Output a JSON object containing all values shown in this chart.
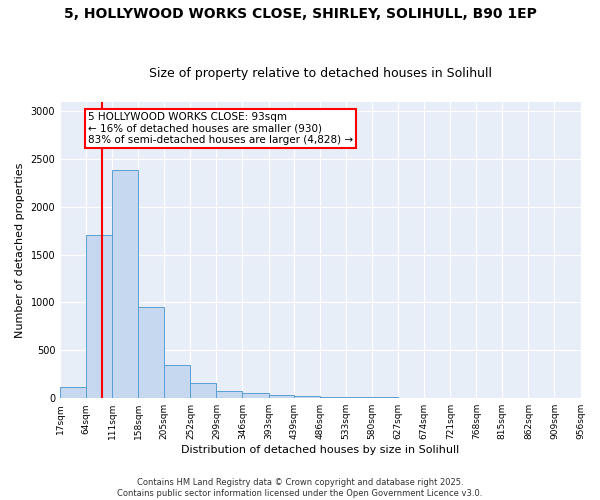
{
  "title_line1": "5, HOLLYWOOD WORKS CLOSE, SHIRLEY, SOLIHULL, B90 1EP",
  "title_line2": "Size of property relative to detached houses in Solihull",
  "xlabel": "Distribution of detached houses by size in Solihull",
  "ylabel": "Number of detached properties",
  "bar_color": "#c5d8f0",
  "bar_edge_color": "#5a9fd4",
  "background_color": "#e8eef8",
  "bin_edges": [
    17,
    64,
    111,
    158,
    205,
    252,
    299,
    346,
    393,
    439,
    486,
    533,
    580,
    627,
    674,
    721,
    768,
    815,
    862,
    909,
    956
  ],
  "bar_heights": [
    120,
    1700,
    2380,
    950,
    350,
    155,
    80,
    50,
    30,
    20,
    15,
    10,
    8,
    5,
    3,
    2,
    2,
    1,
    1,
    1
  ],
  "red_line_x": 93,
  "annotation_text": "5 HOLLYWOOD WORKS CLOSE: 93sqm\n← 16% of detached houses are smaller (930)\n83% of semi-detached houses are larger (4,828) →",
  "ylim": [
    0,
    3100
  ],
  "footer_line1": "Contains HM Land Registry data © Crown copyright and database right 2025.",
  "footer_line2": "Contains public sector information licensed under the Open Government Licence v3.0.",
  "tick_labels": [
    "17sqm",
    "64sqm",
    "111sqm",
    "158sqm",
    "205sqm",
    "252sqm",
    "299sqm",
    "346sqm",
    "393sqm",
    "439sqm",
    "486sqm",
    "533sqm",
    "580sqm",
    "627sqm",
    "674sqm",
    "721sqm",
    "768sqm",
    "815sqm",
    "862sqm",
    "909sqm",
    "956sqm"
  ],
  "title_fontsize": 10,
  "subtitle_fontsize": 9,
  "axis_label_fontsize": 8,
  "tick_fontsize": 6.5,
  "annotation_fontsize": 7.5,
  "footer_fontsize": 6
}
